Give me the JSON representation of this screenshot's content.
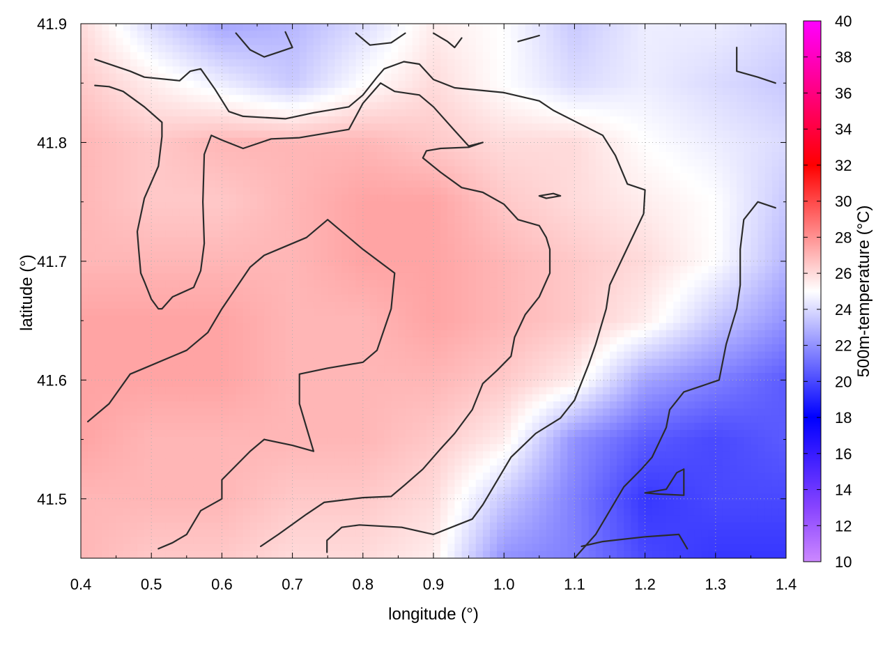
{
  "chart_data": {
    "type": "heatmap",
    "xlabel": "longitude (°)",
    "ylabel": "latitude (°)",
    "colorbar_label": "500m-temperature (°C)",
    "xlim": [
      0.4,
      1.4
    ],
    "ylim": [
      41.45,
      41.9
    ],
    "x_ticks": [
      "0.4",
      "0.5",
      "0.6",
      "0.7",
      "0.8",
      "0.9",
      "1.0",
      "1.1",
      "1.2",
      "1.3",
      "1.4"
    ],
    "y_ticks": [
      "41.5",
      "41.6",
      "41.7",
      "41.8",
      "41.9"
    ],
    "colorbar_range": [
      10,
      40
    ],
    "colorbar_ticks": [
      "10",
      "12",
      "14",
      "16",
      "18",
      "20",
      "22",
      "24",
      "26",
      "28",
      "30",
      "32",
      "34",
      "36",
      "38",
      "40"
    ],
    "colormap_stops": [
      {
        "value": 10,
        "color": "#cc88ff"
      },
      {
        "value": 13,
        "color": "#8844ff"
      },
      {
        "value": 18,
        "color": "#0000ff"
      },
      {
        "value": 25,
        "color": "#ffffff"
      },
      {
        "value": 32,
        "color": "#ff0000"
      },
      {
        "value": 40,
        "color": "#ff00ff"
      }
    ],
    "grid": true,
    "temperature_field": {
      "lon": [
        0.4,
        0.5,
        0.6,
        0.7,
        0.8,
        0.9,
        1.0,
        1.1,
        1.2,
        1.3,
        1.4
      ],
      "lat": [
        41.9,
        41.85,
        41.8,
        41.75,
        41.7,
        41.65,
        41.6,
        41.55,
        41.5,
        41.45
      ],
      "values": [
        [
          26.0,
          24.0,
          22.5,
          23.0,
          24.0,
          25.5,
          25.0,
          23.5,
          24.5,
          24.5,
          24.0
        ],
        [
          26.5,
          25.5,
          24.5,
          23.5,
          25.0,
          26.0,
          25.0,
          24.0,
          24.5,
          24.0,
          23.5
        ],
        [
          27.0,
          26.5,
          27.0,
          27.0,
          27.0,
          26.5,
          26.0,
          26.0,
          25.0,
          24.5,
          24.0
        ],
        [
          27.0,
          26.5,
          26.5,
          27.0,
          27.5,
          27.5,
          26.5,
          26.0,
          25.5,
          25.0,
          23.5
        ],
        [
          27.0,
          27.0,
          27.0,
          27.0,
          27.5,
          27.5,
          27.0,
          26.5,
          26.0,
          25.0,
          23.0
        ],
        [
          27.5,
          27.5,
          27.5,
          27.0,
          27.0,
          27.5,
          27.0,
          26.5,
          25.5,
          23.5,
          22.0
        ],
        [
          27.5,
          27.5,
          27.5,
          27.0,
          27.0,
          27.0,
          26.5,
          25.5,
          22.5,
          21.5,
          20.5
        ],
        [
          27.5,
          27.0,
          27.0,
          27.0,
          27.0,
          26.5,
          25.5,
          22.0,
          20.5,
          20.0,
          20.5
        ],
        [
          27.0,
          27.0,
          27.0,
          26.5,
          26.5,
          26.0,
          23.5,
          21.5,
          19.5,
          20.0,
          20.0
        ],
        [
          27.0,
          26.5,
          26.5,
          26.0,
          26.0,
          25.5,
          22.0,
          21.5,
          20.0,
          19.5,
          19.5
        ]
      ]
    },
    "contours": [
      {
        "points": [
          [
            0.42,
            41.87
          ],
          [
            0.47,
            41.86
          ],
          [
            0.49,
            41.855
          ],
          [
            0.54,
            41.852
          ],
          [
            0.555,
            41.86
          ],
          [
            0.57,
            41.862
          ],
          [
            0.59,
            41.845
          ],
          [
            0.61,
            41.826
          ],
          [
            0.63,
            41.822
          ],
          [
            0.69,
            41.82
          ],
          [
            0.73,
            41.825
          ],
          [
            0.78,
            41.83
          ],
          [
            0.8,
            41.84
          ],
          [
            0.82,
            41.855
          ],
          [
            0.83,
            41.862
          ],
          [
            0.858,
            41.868
          ],
          [
            0.88,
            41.866
          ],
          [
            0.9,
            41.853
          ],
          [
            0.93,
            41.846
          ],
          [
            1.0,
            41.842
          ],
          [
            1.05,
            41.835
          ],
          [
            1.07,
            41.827
          ],
          [
            1.1,
            41.818
          ],
          [
            1.14,
            41.806
          ],
          [
            1.158,
            41.789
          ],
          [
            1.175,
            41.765
          ],
          [
            1.2,
            41.76
          ],
          [
            1.198,
            41.74
          ],
          [
            1.17,
            41.705
          ],
          [
            1.15,
            41.68
          ],
          [
            1.145,
            41.66
          ],
          [
            1.13,
            41.63
          ],
          [
            1.12,
            41.613
          ],
          [
            1.1,
            41.583
          ],
          [
            1.08,
            41.568
          ],
          [
            1.045,
            41.555
          ],
          [
            1.01,
            41.535
          ],
          [
            0.97,
            41.495
          ],
          [
            0.955,
            41.483
          ],
          [
            0.9,
            41.47
          ],
          [
            0.855,
            41.476
          ],
          [
            0.795,
            41.478
          ],
          [
            0.77,
            41.476
          ],
          [
            0.749,
            41.465
          ],
          [
            0.749,
            41.455
          ]
        ]
      },
      {
        "points": [
          [
            0.42,
            41.848
          ],
          [
            0.44,
            41.847
          ],
          [
            0.46,
            41.843
          ],
          [
            0.49,
            41.83
          ],
          [
            0.515,
            41.817
          ],
          [
            0.515,
            41.805
          ],
          [
            0.51,
            41.78
          ],
          [
            0.49,
            41.753
          ],
          [
            0.48,
            41.725
          ],
          [
            0.482,
            41.71
          ],
          [
            0.485,
            41.69
          ],
          [
            0.49,
            41.683
          ],
          [
            0.5,
            41.668
          ],
          [
            0.51,
            41.66
          ],
          [
            0.515,
            41.66
          ],
          [
            0.53,
            41.67
          ],
          [
            0.56,
            41.678
          ],
          [
            0.57,
            41.692
          ],
          [
            0.575,
            41.715
          ],
          [
            0.573,
            41.75
          ],
          [
            0.575,
            41.79
          ],
          [
            0.585,
            41.806
          ],
          [
            0.6,
            41.802
          ],
          [
            0.63,
            41.795
          ],
          [
            0.67,
            41.803
          ],
          [
            0.71,
            41.804
          ],
          [
            0.78,
            41.811
          ],
          [
            0.8,
            41.833
          ],
          [
            0.825,
            41.85
          ],
          [
            0.845,
            41.843
          ],
          [
            0.88,
            41.84
          ],
          [
            0.9,
            41.83
          ],
          [
            0.93,
            41.81
          ],
          [
            0.95,
            41.797
          ],
          [
            0.97,
            41.8
          ],
          [
            0.95,
            41.796
          ],
          [
            0.91,
            41.795
          ],
          [
            0.89,
            41.793
          ],
          [
            0.885,
            41.787
          ],
          [
            0.91,
            41.775
          ],
          [
            0.94,
            41.762
          ],
          [
            0.97,
            41.758
          ],
          [
            1.0,
            41.748
          ],
          [
            1.02,
            41.735
          ],
          [
            1.05,
            41.73
          ],
          [
            1.06,
            41.72
          ],
          [
            1.065,
            41.71
          ],
          [
            1.065,
            41.69
          ],
          [
            1.05,
            41.67
          ],
          [
            1.03,
            41.655
          ],
          [
            1.015,
            41.636
          ],
          [
            1.01,
            41.62
          ],
          [
            0.99,
            41.608
          ],
          [
            0.97,
            41.597
          ],
          [
            0.955,
            41.575
          ],
          [
            0.93,
            41.555
          ],
          [
            0.91,
            41.542
          ],
          [
            0.885,
            41.525
          ],
          [
            0.86,
            41.512
          ],
          [
            0.84,
            41.502
          ],
          [
            0.8,
            41.501
          ],
          [
            0.745,
            41.497
          ],
          [
            0.72,
            41.487
          ],
          [
            0.68,
            41.47
          ],
          [
            0.655,
            41.46
          ]
        ]
      },
      {
        "points": [
          [
            0.66,
            41.55
          ],
          [
            0.7,
            41.545
          ],
          [
            0.73,
            41.54
          ],
          [
            0.72,
            41.56
          ],
          [
            0.71,
            41.58
          ],
          [
            0.71,
            41.605
          ],
          [
            0.75,
            41.61
          ],
          [
            0.8,
            41.615
          ],
          [
            0.82,
            41.625
          ],
          [
            0.84,
            41.66
          ],
          [
            0.845,
            41.69
          ],
          [
            0.8,
            41.71
          ],
          [
            0.78,
            41.72
          ],
          [
            0.75,
            41.735
          ],
          [
            0.72,
            41.72
          ],
          [
            0.68,
            41.71
          ],
          [
            0.66,
            41.705
          ],
          [
            0.64,
            41.695
          ],
          [
            0.6,
            41.66
          ],
          [
            0.58,
            41.64
          ],
          [
            0.55,
            41.625
          ],
          [
            0.49,
            41.61
          ],
          [
            0.47,
            41.605
          ],
          [
            0.44,
            41.58
          ],
          [
            0.41,
            41.565
          ]
        ]
      },
      {
        "points": [
          [
            1.33,
            41.88
          ],
          [
            1.33,
            41.86
          ],
          [
            1.36,
            41.855
          ],
          [
            1.385,
            41.85
          ]
        ]
      },
      {
        "points": [
          [
            1.385,
            41.745
          ],
          [
            1.36,
            41.75
          ],
          [
            1.34,
            41.735
          ],
          [
            1.335,
            41.71
          ],
          [
            1.335,
            41.68
          ],
          [
            1.33,
            41.66
          ],
          [
            1.32,
            41.64
          ],
          [
            1.315,
            41.63
          ],
          [
            1.305,
            41.6
          ],
          [
            1.28,
            41.595
          ],
          [
            1.255,
            41.59
          ],
          [
            1.235,
            41.575
          ],
          [
            1.23,
            41.56
          ],
          [
            1.21,
            41.535
          ],
          [
            1.195,
            41.525
          ],
          [
            1.17,
            41.51
          ],
          [
            1.15,
            41.49
          ],
          [
            1.13,
            41.47
          ],
          [
            1.1,
            41.45
          ]
        ]
      },
      {
        "points": [
          [
            1.2,
            41.505
          ],
          [
            1.23,
            41.508
          ],
          [
            1.245,
            41.522
          ],
          [
            1.255,
            41.525
          ],
          [
            1.255,
            41.503
          ],
          [
            1.22,
            41.504
          ],
          [
            1.2,
            41.505
          ]
        ]
      },
      {
        "points": [
          [
            1.11,
            41.46
          ],
          [
            1.14,
            41.464
          ],
          [
            1.2,
            41.468
          ],
          [
            1.248,
            41.47
          ],
          [
            1.26,
            41.458
          ]
        ]
      },
      {
        "points": [
          [
            1.05,
            41.755
          ],
          [
            1.07,
            41.757
          ],
          [
            1.08,
            41.755
          ],
          [
            1.06,
            41.753
          ],
          [
            1.05,
            41.755
          ]
        ]
      },
      {
        "points": [
          [
            0.62,
            41.892
          ],
          [
            0.64,
            41.878
          ],
          [
            0.66,
            41.872
          ],
          [
            0.68,
            41.876
          ],
          [
            0.7,
            41.88
          ],
          [
            0.69,
            41.893
          ]
        ]
      },
      {
        "points": [
          [
            0.79,
            41.892
          ],
          [
            0.81,
            41.882
          ],
          [
            0.84,
            41.884
          ],
          [
            0.86,
            41.892
          ]
        ]
      },
      {
        "points": [
          [
            0.9,
            41.892
          ],
          [
            0.92,
            41.885
          ],
          [
            0.93,
            41.88
          ],
          [
            0.94,
            41.888
          ]
        ]
      },
      {
        "points": [
          [
            1.02,
            41.885
          ],
          [
            1.05,
            41.89
          ]
        ]
      },
      {
        "points": [
          [
            0.51,
            41.458
          ],
          [
            0.53,
            41.463
          ],
          [
            0.55,
            41.47
          ],
          [
            0.57,
            41.49
          ],
          [
            0.6,
            41.5
          ],
          [
            0.6,
            41.516
          ],
          [
            0.64,
            41.54
          ],
          [
            0.66,
            41.55
          ]
        ]
      }
    ]
  }
}
